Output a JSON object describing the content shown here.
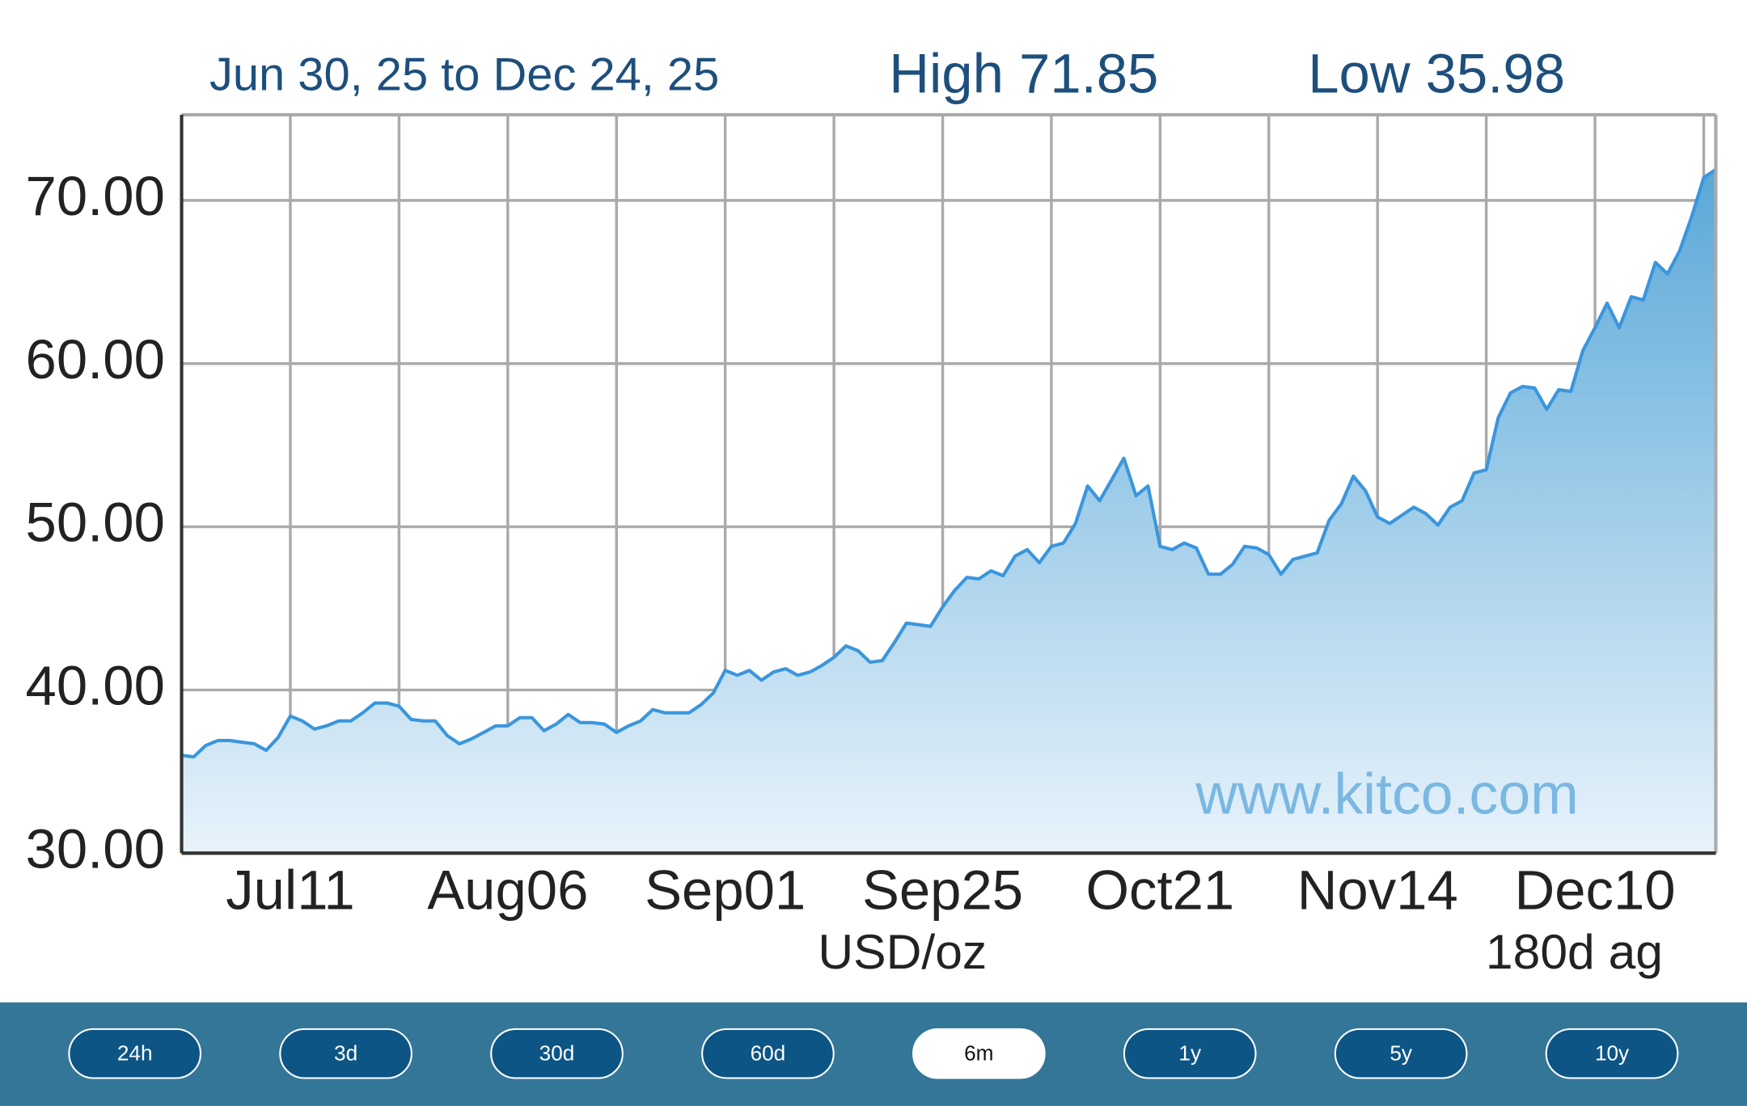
{
  "chart_data": {
    "type": "area",
    "header_range": "Jun 30, 25 to Dec 24, 25",
    "header_high": "High 71.85",
    "header_low": "Low 35.98",
    "y_unit": "USD/oz",
    "period_label": "180d ag",
    "watermark": "www.kitco.com",
    "color": "#3a96dc",
    "grid": true,
    "ylim": [
      30,
      75.25
    ],
    "yticks": [
      {
        "value": 30,
        "label": "30.00"
      },
      {
        "value": 40,
        "label": "40.00"
      },
      {
        "value": 50,
        "label": "50.00"
      },
      {
        "value": 60,
        "label": "60.00"
      },
      {
        "value": 70,
        "label": "70.00"
      }
    ],
    "categories": [
      null,
      null,
      null,
      null,
      null,
      null,
      null,
      null,
      null,
      "Jul11",
      null,
      null,
      null,
      null,
      null,
      null,
      null,
      null,
      null,
      null,
      null,
      null,
      null,
      null,
      null,
      null,
      null,
      "Aug06",
      null,
      null,
      null,
      null,
      null,
      null,
      null,
      null,
      null,
      null,
      null,
      null,
      null,
      null,
      null,
      null,
      null,
      "Sep01",
      null,
      null,
      null,
      null,
      null,
      null,
      null,
      null,
      null,
      null,
      null,
      null,
      null,
      null,
      null,
      null,
      null,
      "Sep25",
      null,
      null,
      null,
      null,
      null,
      null,
      null,
      null,
      null,
      null,
      null,
      null,
      null,
      null,
      null,
      null,
      null,
      "Oct21",
      null,
      null,
      null,
      null,
      null,
      null,
      null,
      null,
      null,
      null,
      null,
      null,
      null,
      null,
      null,
      null,
      null,
      "Nov14",
      null,
      null,
      null,
      null,
      null,
      null,
      null,
      null,
      null,
      null,
      null,
      null,
      null,
      null,
      null,
      null,
      null,
      "Dec10",
      null,
      null,
      null,
      null,
      null,
      null,
      null,
      null,
      null,
      null
    ],
    "values": [
      36.0,
      35.9,
      36.6,
      36.9,
      36.9,
      36.8,
      36.7,
      36.3,
      37.1,
      38.4,
      38.1,
      37.6,
      37.8,
      38.1,
      38.1,
      38.6,
      39.2,
      39.2,
      39.0,
      38.2,
      38.1,
      38.1,
      37.2,
      36.7,
      37.0,
      37.4,
      37.8,
      37.8,
      38.3,
      38.3,
      37.5,
      37.9,
      38.5,
      38.0,
      38.0,
      37.9,
      37.4,
      37.8,
      38.1,
      38.8,
      38.6,
      38.6,
      38.6,
      39.1,
      39.8,
      41.2,
      40.9,
      41.2,
      40.6,
      41.1,
      41.3,
      40.9,
      41.1,
      41.5,
      42.0,
      42.7,
      42.4,
      41.7,
      41.8,
      42.9,
      44.1,
      44.0,
      43.9,
      45.1,
      46.1,
      46.9,
      46.8,
      47.3,
      47.0,
      48.2,
      48.6,
      47.8,
      48.8,
      49.0,
      50.2,
      52.5,
      51.6,
      52.9,
      54.2,
      51.9,
      52.5,
      48.8,
      48.6,
      49.0,
      48.7,
      47.1,
      47.1,
      47.7,
      48.8,
      48.7,
      48.3,
      47.1,
      48.0,
      48.2,
      48.4,
      50.4,
      51.4,
      53.1,
      52.2,
      50.6,
      50.2,
      50.7,
      51.2,
      50.8,
      50.1,
      51.2,
      51.6,
      53.3,
      53.5,
      56.7,
      58.2,
      58.6,
      58.5,
      57.2,
      58.4,
      58.3,
      60.8,
      62.2,
      63.7,
      62.2,
      64.1,
      63.9,
      66.2,
      65.5,
      66.9,
      69.0,
      71.4,
      71.9
    ]
  },
  "buttons": {
    "labels": [
      "24h",
      "3d",
      "30d",
      "60d",
      "6m",
      "1y",
      "5y",
      "10y"
    ],
    "selected": 4
  }
}
